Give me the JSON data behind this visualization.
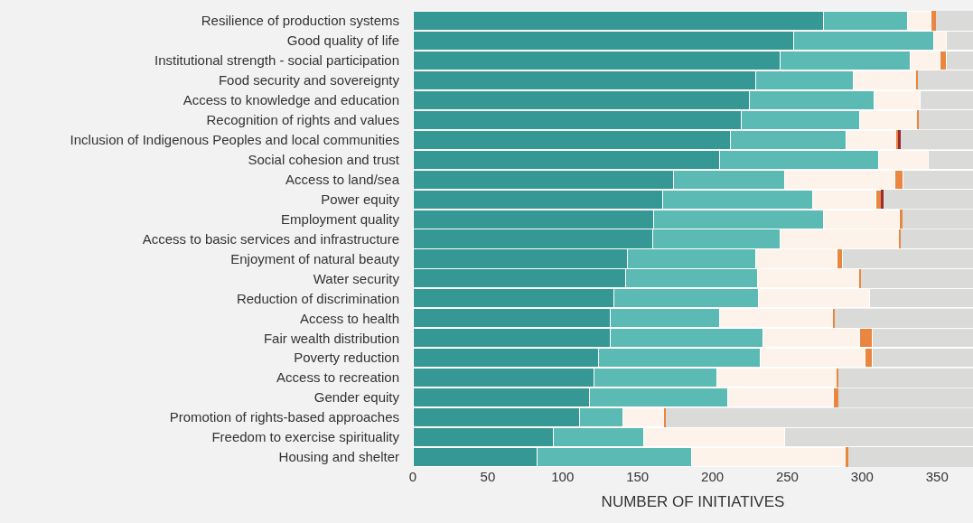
{
  "chart_data": {
    "type": "bar",
    "orientation": "horizontal",
    "stacked": true,
    "xlabel": "NUMBER OF INITIATIVES",
    "categories": [
      "Resilience of production systems",
      "Good quality of life",
      "Institutional strength - social participation",
      "Food security and sovereignty",
      "Access to knowledge and education",
      "Recognition of rights and values",
      "Inclusion of Indigenous Peoples and local communities",
      "Social cohesion and trust",
      "Access to land/sea",
      "Power equity",
      "Employment quality",
      "Access to basic services and infrastructure",
      "Enjoyment of natural beauty",
      "Water security",
      "Reduction of discrimination",
      "Access to health",
      "Fair wealth distribution",
      "Poverty reduction",
      "Access to recreation",
      "Gender equity",
      "Promotion of rights-based approaches",
      "Freedom to exercise spirituality",
      "Housing and shelter"
    ],
    "series": [
      {
        "color": "#359894",
        "values": [
          274,
          254,
          245,
          229,
          225,
          219,
          212,
          205,
          174,
          167,
          161,
          160,
          143,
          142,
          134,
          132,
          132,
          124,
          121,
          118,
          111,
          94,
          83
        ]
      },
      {
        "color": "#5bbab4",
        "values": [
          56,
          94,
          87,
          65,
          83,
          79,
          77,
          106,
          74,
          100,
          113,
          85,
          86,
          88,
          97,
          73,
          102,
          108,
          82,
          92,
          29,
          60,
          103
        ]
      },
      {
        "color": "#fdf3ea",
        "values": [
          16,
          8,
          20,
          42,
          31,
          39,
          34,
          33,
          74,
          42,
          51,
          80,
          54,
          68,
          74,
          76,
          64,
          70,
          80,
          71,
          28,
          94,
          103
        ]
      },
      {
        "color": "#e98640",
        "values": [
          3,
          0,
          4,
          1,
          0,
          1,
          1,
          0,
          5,
          4,
          2,
          1,
          4,
          1,
          0,
          1,
          9,
          5,
          1,
          3,
          1,
          0,
          2
        ]
      },
      {
        "color": "#9b2a35",
        "values": [
          0,
          0,
          0,
          0,
          0,
          0,
          2,
          0,
          0,
          1,
          0,
          0,
          0,
          0,
          0,
          0,
          0,
          0,
          0,
          0,
          0,
          0,
          0
        ]
      },
      {
        "color": "#dadad9",
        "values": [
          25,
          18,
          18,
          37,
          35,
          36,
          48,
          30,
          47,
          60,
          47,
          48,
          87,
          75,
          69,
          92,
          67,
          67,
          90,
          90,
          205,
          126,
          83
        ]
      }
    ],
    "xlim": [
      0,
      374
    ],
    "xticks": [
      0,
      50,
      100,
      150,
      200,
      250,
      300,
      350
    ]
  }
}
